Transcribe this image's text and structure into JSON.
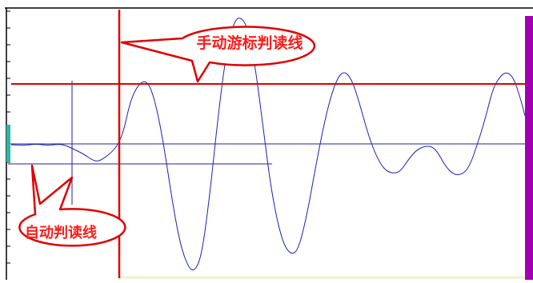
{
  "annotations": {
    "manual_cursor_label": "手动游标判读线",
    "auto_reading_label": "自动判读线"
  },
  "colors": {
    "waveform": "#1f1fb8",
    "manual_cursor_line": "#e00000",
    "auto_reading_line": "#2020a8",
    "callout_fill": "#ffffff",
    "callout_stroke": "#e00000",
    "callout_text": "#ff1a1a",
    "left_marker": "#28b8a8",
    "right_marker": "#a000b0",
    "frame": "#000000",
    "ruler_tick": "#000000"
  },
  "icons": {
    "left_marker": "teal-trigger-marker-icon",
    "right_marker": "purple-end-marker-icon"
  }
}
